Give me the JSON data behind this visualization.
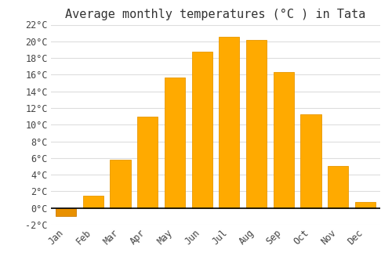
{
  "title": "Average monthly temperatures (°C ) in Tata",
  "months": [
    "Jan",
    "Feb",
    "Mar",
    "Apr",
    "May",
    "Jun",
    "Jul",
    "Aug",
    "Sep",
    "Oct",
    "Nov",
    "Dec"
  ],
  "values": [
    -1.0,
    1.5,
    5.8,
    11.0,
    15.7,
    18.8,
    20.5,
    20.2,
    16.3,
    11.2,
    5.0,
    0.7
  ],
  "bar_color_face": "#FFAA00",
  "bar_color_edge": "#E89800",
  "bar_color_neg_face": "#E89000",
  "bar_color_neg_edge": "#CC7A00",
  "ylim": [
    -2,
    22
  ],
  "yticks": [
    -2,
    0,
    2,
    4,
    6,
    8,
    10,
    12,
    14,
    16,
    18,
    20,
    22
  ],
  "ytick_labels": [
    "-2°C",
    "0°C",
    "2°C",
    "4°C",
    "6°C",
    "8°C",
    "10°C",
    "12°C",
    "14°C",
    "16°C",
    "18°C",
    "20°C",
    "22°C"
  ],
  "background_color": "#ffffff",
  "grid_color": "#dddddd",
  "title_fontsize": 11,
  "tick_fontsize": 8.5,
  "bar_width": 0.75,
  "figsize": [
    5.0,
    3.5
  ],
  "dpi": 100
}
